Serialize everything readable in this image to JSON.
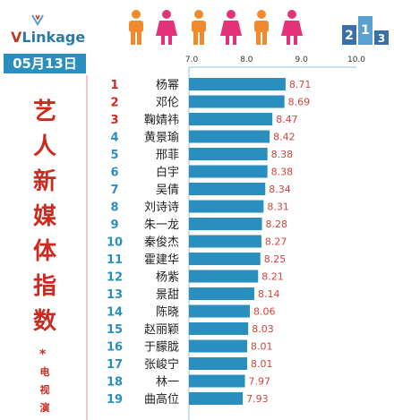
{
  "header": {
    "logo_v": "V",
    "logo_rest": "Linkage",
    "brand_digits": "213"
  },
  "date_label": "05月13日",
  "side_title": [
    "艺",
    "人",
    "新",
    "媒",
    "体",
    "指",
    "数"
  ],
  "side_star": "*",
  "side_subtitle": [
    "电",
    "视",
    "演"
  ],
  "colors": {
    "bar": "#2a8fbf",
    "accent_red": "#cc2a1e",
    "value_text": "#d0453a",
    "rank_top": "#cc2a1e",
    "rank_other": "#2a8fbf",
    "person_orange": "#f08a2c",
    "person_pink": "#e4317a"
  },
  "icons": [
    "person-icon-orange",
    "person-icon-pink"
  ],
  "chart_data": {
    "type": "bar",
    "orientation": "horizontal",
    "xlim": [
      6.95,
      10.0
    ],
    "xticks": [
      "7.0",
      "8.0",
      "9.0",
      "10.0"
    ],
    "grid": false,
    "legend": "none",
    "ranks": [
      "1",
      "2",
      "3",
      "4",
      "5",
      "6",
      "7",
      "8",
      "9",
      "10",
      "11",
      "12",
      "13",
      "14",
      "15",
      "16",
      "17",
      "18",
      "19"
    ],
    "categories": [
      "杨幂",
      "邓伦",
      "鞠婧祎",
      "黄景瑜",
      "邢菲",
      "白宇",
      "吴倩",
      "刘诗诗",
      "朱一龙",
      "秦俊杰",
      "霍建华",
      "杨紫",
      "景甜",
      "陈晓",
      "赵丽颖",
      "于朦胧",
      "张峻宁",
      "林一",
      "曲高位"
    ],
    "values": [
      8.71,
      8.69,
      8.47,
      8.42,
      8.38,
      8.38,
      8.34,
      8.31,
      8.28,
      8.27,
      8.25,
      8.21,
      8.14,
      8.06,
      8.03,
      8.01,
      8.01,
      7.97,
      7.93
    ],
    "value_labels": [
      "8.71",
      "8.69",
      "8.47",
      "8.42",
      "8.38",
      "8.38",
      "8.34",
      "8.31",
      "8.28",
      "8.27",
      "8.25",
      "8.21",
      "8.14",
      "8.06",
      "8.03",
      "8.01",
      "8.01",
      "7.97",
      "7.93"
    ]
  }
}
